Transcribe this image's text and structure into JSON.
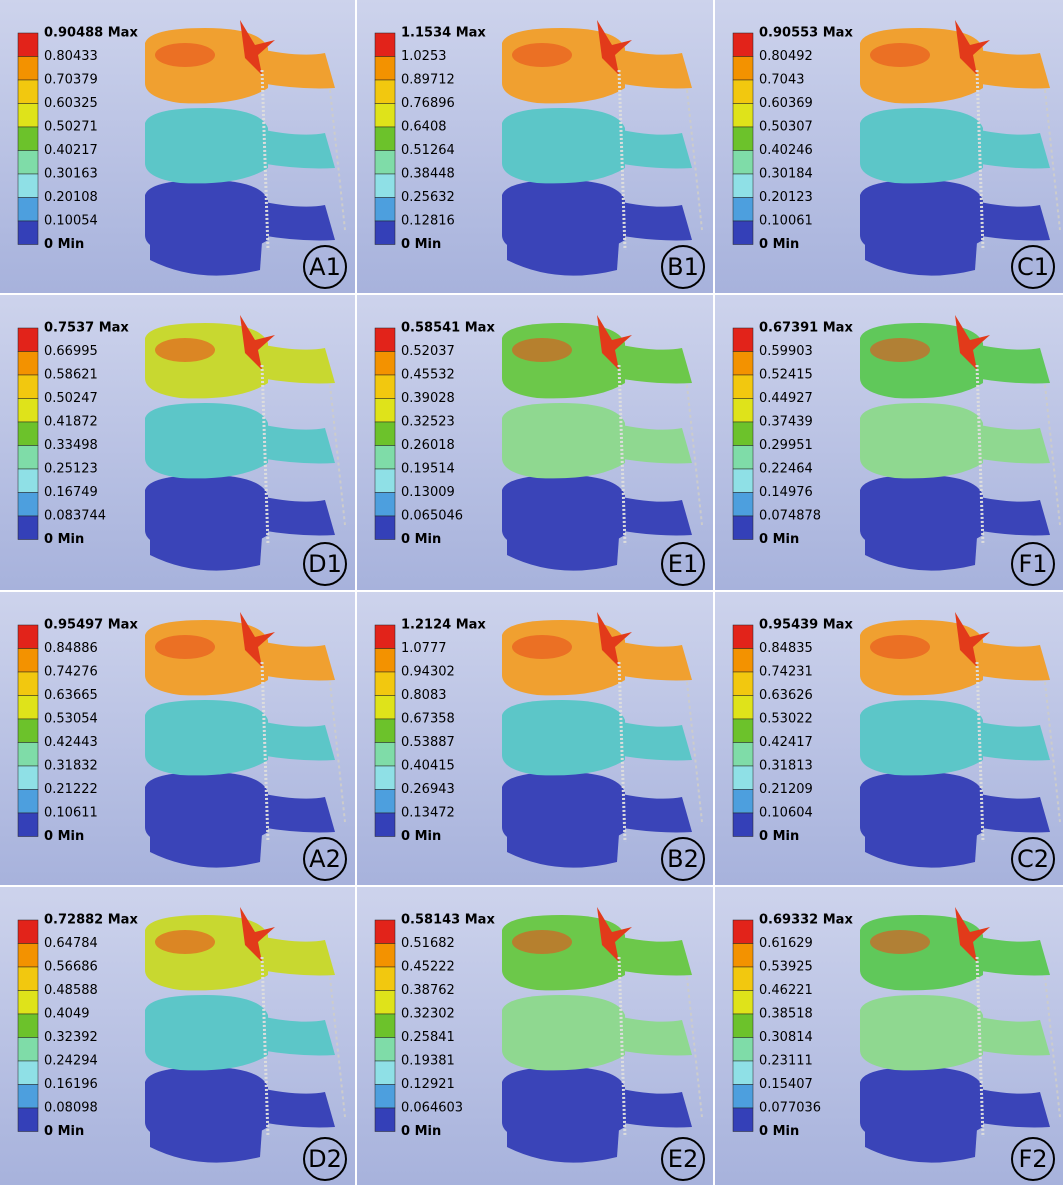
{
  "panels": [
    {
      "label": "A1",
      "legend": [
        "0.90488 Max",
        "0.80433",
        "0.70379",
        "0.60325",
        "0.50271",
        "0.40217",
        "0.30163",
        "0.20108",
        "0.10054",
        "0 Min"
      ]
    },
    {
      "label": "B1",
      "legend": [
        "1.1534 Max",
        "1.0253",
        "0.89712",
        "0.76896",
        "0.6408",
        "0.51264",
        "0.38448",
        "0.25632",
        "0.12816",
        "0 Min"
      ]
    },
    {
      "label": "C1",
      "legend": [
        "0.90553 Max",
        "0.80492",
        "0.7043",
        "0.60369",
        "0.50307",
        "0.40246",
        "0.30184",
        "0.20123",
        "0.10061",
        "0 Min"
      ]
    },
    {
      "label": "D1",
      "legend": [
        "0.7537 Max",
        "0.66995",
        "0.58621",
        "0.50247",
        "0.41872",
        "0.33498",
        "0.25123",
        "0.16749",
        "0.083744",
        "0 Min"
      ]
    },
    {
      "label": "E1",
      "legend": [
        "0.58541 Max",
        "0.52037",
        "0.45532",
        "0.39028",
        "0.32523",
        "0.26018",
        "0.19514",
        "0.13009",
        "0.065046",
        "0 Min"
      ]
    },
    {
      "label": "F1",
      "legend": [
        "0.67391 Max",
        "0.59903",
        "0.52415",
        "0.44927",
        "0.37439",
        "0.29951",
        "0.22464",
        "0.14976",
        "0.074878",
        "0 Min"
      ]
    },
    {
      "label": "A2",
      "legend": [
        "0.95497 Max",
        "0.84886",
        "0.74276",
        "0.63665",
        "0.53054",
        "0.42443",
        "0.31832",
        "0.21222",
        "0.10611",
        "0 Min"
      ]
    },
    {
      "label": "B2",
      "legend": [
        "1.2124 Max",
        "1.0777",
        "0.94302",
        "0.8083",
        "0.67358",
        "0.53887",
        "0.40415",
        "0.26943",
        "0.13472",
        "0 Min"
      ]
    },
    {
      "label": "C2",
      "legend": [
        "0.95439 Max",
        "0.84835",
        "0.74231",
        "0.63626",
        "0.53022",
        "0.42417",
        "0.31813",
        "0.21209",
        "0.10604",
        "0 Min"
      ]
    },
    {
      "label": "D2",
      "legend": [
        "0.72882 Max",
        "0.64784",
        "0.56686",
        "0.48588",
        "0.4049",
        "0.32392",
        "0.24294",
        "0.16196",
        "0.08098",
        "0 Min"
      ]
    },
    {
      "label": "E2",
      "legend": [
        "0.58143 Max",
        "0.51682",
        "0.45222",
        "0.38762",
        "0.32302",
        "0.25841",
        "0.19381",
        "0.12921",
        "0.064603",
        "0 Min"
      ]
    },
    {
      "label": "F2",
      "legend": [
        "0.69332 Max",
        "0.61629",
        "0.53925",
        "0.46221",
        "0.38518",
        "0.30814",
        "0.23111",
        "0.15407",
        "0.077036",
        "0 Min"
      ]
    }
  ]
}
